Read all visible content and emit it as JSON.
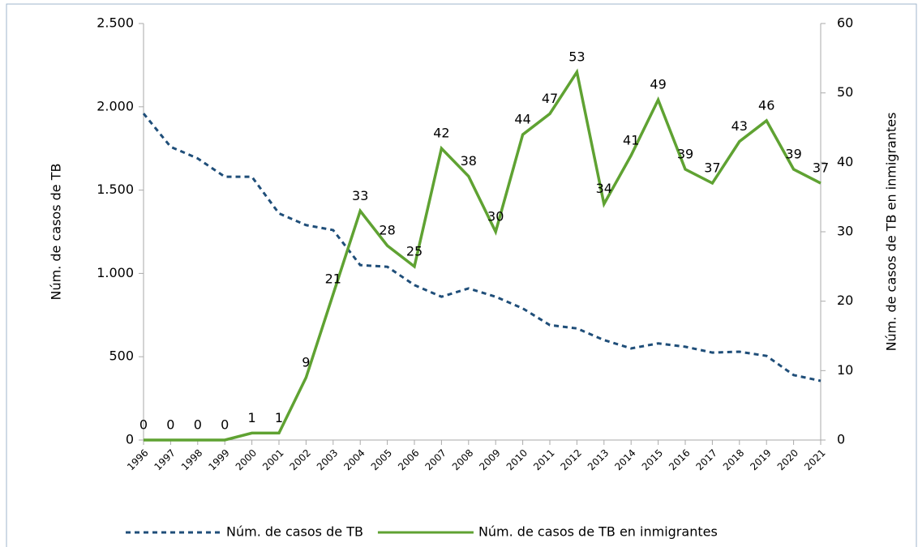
{
  "chart_data": {
    "type": "line",
    "categories": [
      "1996",
      "1997",
      "1998",
      "1999",
      "2000",
      "2001",
      "2002",
      "2003",
      "2004",
      "2005",
      "2006",
      "2007",
      "2008",
      "2009",
      "2010",
      "2011",
      "2012",
      "2013",
      "2014",
      "2015",
      "2016",
      "2017",
      "2018",
      "2019",
      "2020",
      "2021"
    ],
    "ylabel": "Núm. de casos de TB",
    "y2label": "Núm. de casos de TB en inmigrantes",
    "ylim": [
      0,
      2500
    ],
    "yticks": [
      0,
      500,
      {
        "value": 1000,
        "label": "1.000"
      },
      {
        "value": 1500,
        "label": "1.500"
      },
      {
        "value": 2000,
        "label": "2.000"
      },
      {
        "value": 2500,
        "label": "2.500"
      }
    ],
    "y2lim": [
      0,
      60
    ],
    "y2ticks": [
      0,
      10,
      20,
      30,
      40,
      50,
      60
    ],
    "legend": "bottom",
    "series": [
      {
        "name": "Núm. de casos de TB",
        "color": "#1f4e79",
        "dashed": true,
        "values": [
          1960,
          1760,
          1690,
          1580,
          1580,
          1360,
          1290,
          1260,
          1050,
          1040,
          930,
          860,
          910,
          860,
          790,
          690,
          670,
          600,
          550,
          580,
          560,
          525,
          530,
          505,
          390,
          355
        ]
      },
      {
        "name": "Núm. de casos de TB en inmigrantes",
        "color": "#5fa232",
        "axis": "y2",
        "show_labels": true,
        "values": [
          0,
          0,
          0,
          0,
          1,
          1,
          9,
          21,
          33,
          28,
          25,
          42,
          38,
          30,
          44,
          47,
          53,
          34,
          41,
          49,
          39,
          37,
          43,
          46,
          39,
          37
        ]
      }
    ]
  }
}
